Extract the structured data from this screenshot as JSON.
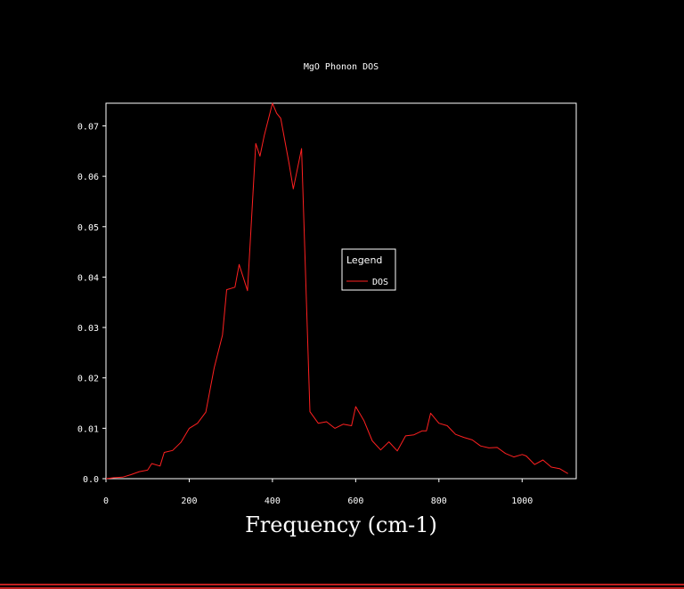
{
  "chart_data": {
    "type": "line",
    "title": "MgO Phonon DOS",
    "xlabel": "Frequency (cm-1)",
    "ylabel": "",
    "xlim": [
      0,
      1130
    ],
    "ylim": [
      0,
      0.0745
    ],
    "x_ticks": [
      0,
      200,
      400,
      600,
      800,
      1000
    ],
    "y_ticks": [
      0.0,
      0.01,
      0.02,
      0.03,
      0.04,
      0.05,
      0.06,
      0.07
    ],
    "y_tick_labels": [
      "0.0",
      "0.01",
      "0.02",
      "0.03",
      "0.04",
      "0.05",
      "0.06",
      "0.07"
    ],
    "grid": false,
    "legend": {
      "title": "Legend",
      "position": "center-right"
    },
    "series": [
      {
        "name": "DOS",
        "color": "#ff2020",
        "x": [
          0,
          20,
          40,
          60,
          80,
          100,
          110,
          130,
          140,
          160,
          180,
          200,
          220,
          240,
          260,
          280,
          290,
          310,
          320,
          340,
          360,
          370,
          380,
          400,
          410,
          420,
          440,
          450,
          470,
          490,
          510,
          530,
          550,
          570,
          590,
          600,
          620,
          640,
          660,
          680,
          700,
          720,
          740,
          760,
          770,
          780,
          800,
          820,
          840,
          860,
          880,
          900,
          920,
          940,
          960,
          980,
          1000,
          1010,
          1030,
          1050,
          1070,
          1090,
          1110
        ],
        "values": [
          0.0,
          0.0002,
          0.0003,
          0.0008,
          0.0014,
          0.0017,
          0.003,
          0.0025,
          0.0052,
          0.0056,
          0.0072,
          0.01,
          0.011,
          0.0132,
          0.022,
          0.0285,
          0.0375,
          0.038,
          0.0425,
          0.0373,
          0.0665,
          0.064,
          0.068,
          0.0745,
          0.0725,
          0.0715,
          0.0625,
          0.0575,
          0.0655,
          0.0133,
          0.011,
          0.0113,
          0.01,
          0.0108,
          0.0105,
          0.0143,
          0.0115,
          0.0075,
          0.0057,
          0.0073,
          0.0055,
          0.0085,
          0.0087,
          0.0095,
          0.0095,
          0.013,
          0.011,
          0.0105,
          0.0088,
          0.0082,
          0.0077,
          0.0065,
          0.0061,
          0.0062,
          0.005,
          0.0043,
          0.0048,
          0.0045,
          0.0028,
          0.0037,
          0.0023,
          0.002,
          0.001
        ]
      }
    ]
  }
}
